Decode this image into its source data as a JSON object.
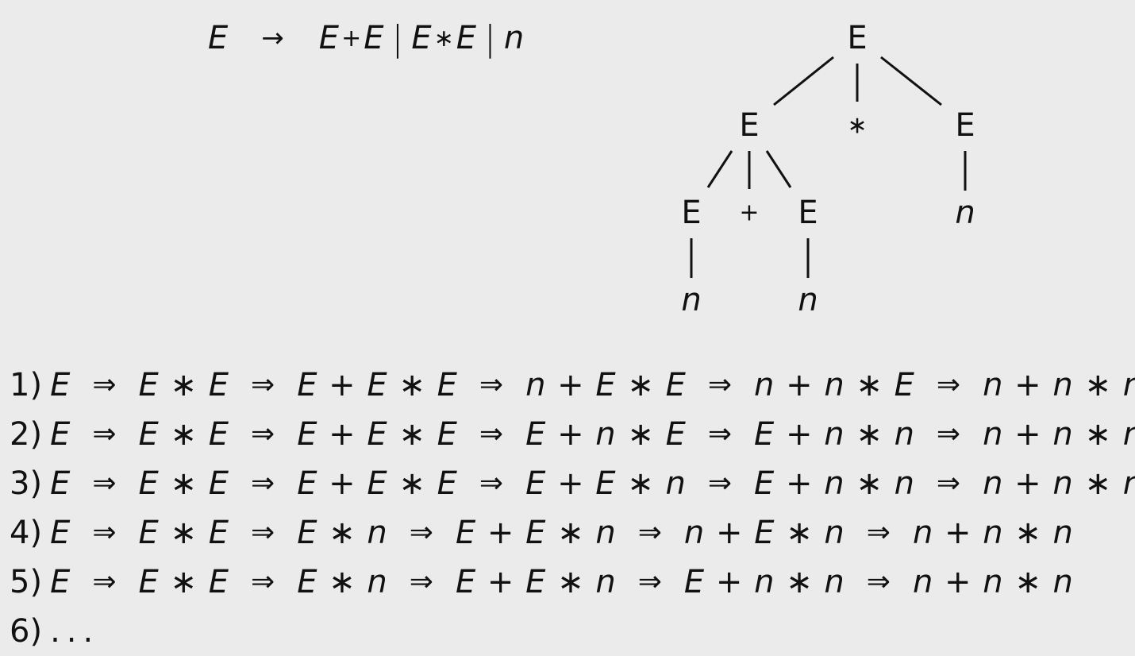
{
  "grammar": {
    "lhs": "E",
    "arrow": "→",
    "alternatives": [
      {
        "left": "E",
        "op": "+",
        "right": "E"
      },
      {
        "left": "E",
        "op": "∗",
        "right": "E"
      },
      {
        "single": "n"
      }
    ],
    "separator": "|"
  },
  "parse_tree": {
    "nodes": [
      {
        "id": "root",
        "label": "E",
        "italic": false
      },
      {
        "id": "left",
        "label": "E",
        "italic": false
      },
      {
        "id": "star",
        "label": "∗",
        "italic": false
      },
      {
        "id": "right",
        "label": "E",
        "italic": false
      },
      {
        "id": "ll",
        "label": "E",
        "italic": false
      },
      {
        "id": "plus",
        "label": "+",
        "italic": false
      },
      {
        "id": "lr",
        "label": "E",
        "italic": false
      },
      {
        "id": "rn",
        "label": "n",
        "italic": true
      },
      {
        "id": "lln",
        "label": "n",
        "italic": true
      },
      {
        "id": "lrn",
        "label": "n",
        "italic": true
      }
    ],
    "edges": [
      [
        "root",
        "left"
      ],
      [
        "root",
        "star"
      ],
      [
        "root",
        "right"
      ],
      [
        "left",
        "ll"
      ],
      [
        "left",
        "plus"
      ],
      [
        "left",
        "lr"
      ],
      [
        "right",
        "rn"
      ],
      [
        "ll",
        "lln"
      ],
      [
        "lr",
        "lrn"
      ]
    ]
  },
  "derivations": [
    {
      "label": "1)",
      "steps": [
        "E",
        "E ∗ E",
        "E + E ∗ E",
        "n + E ∗ E",
        "n + n ∗ E",
        "n + n ∗ n"
      ]
    },
    {
      "label": "2)",
      "steps": [
        "E",
        "E ∗ E",
        "E + E ∗ E",
        "E + n ∗ E",
        "E + n ∗ n",
        "n + n ∗ n"
      ]
    },
    {
      "label": "3)",
      "steps": [
        "E",
        "E ∗ E",
        "E + E ∗ E",
        "E + E ∗ n",
        "E + n ∗ n",
        "n + n ∗ n"
      ]
    },
    {
      "label": "4)",
      "steps": [
        "E",
        "E ∗ E",
        "E ∗ n",
        "E + E ∗ n",
        "n + E ∗ n",
        "n + n ∗ n"
      ]
    },
    {
      "label": "5)",
      "steps": [
        "E",
        "E ∗ E",
        "E ∗ n",
        "E + E ∗ n",
        "E + n ∗ n",
        "n + n ∗ n"
      ]
    }
  ],
  "derivation_arrow": "⇒",
  "continuation": {
    "label": "6)",
    "text": "..."
  }
}
